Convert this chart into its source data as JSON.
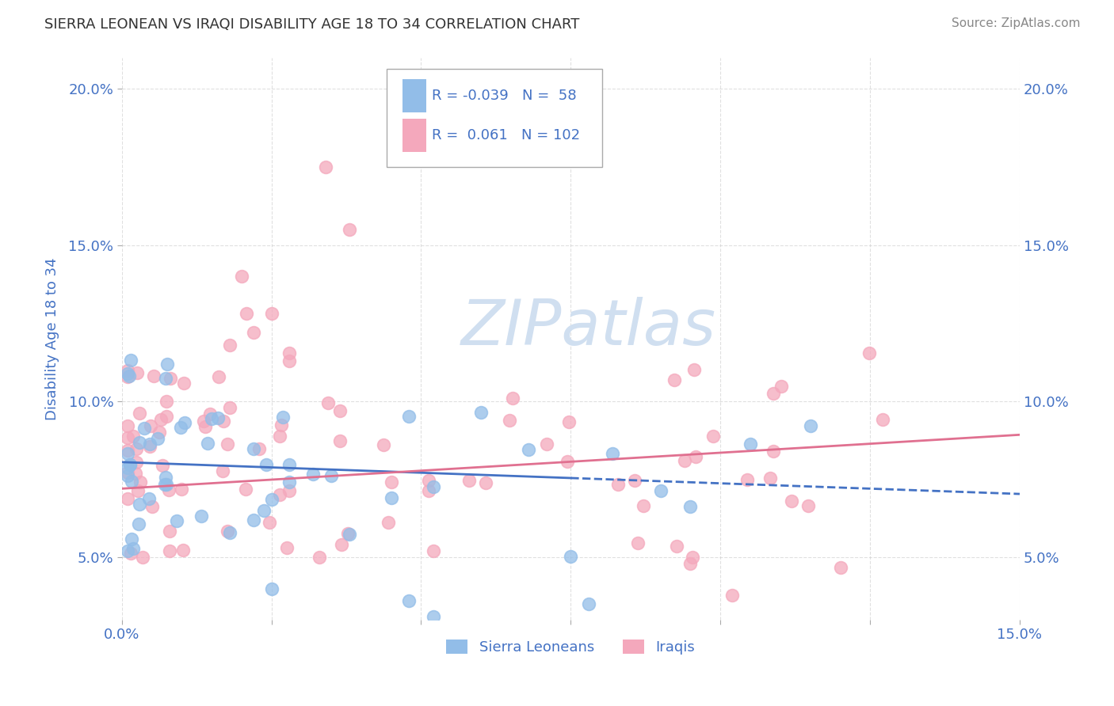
{
  "title": "SIERRA LEONEAN VS IRAQI DISABILITY AGE 18 TO 34 CORRELATION CHART",
  "source_text": "Source: ZipAtlas.com",
  "ylabel": "Disability Age 18 to 34",
  "xlim": [
    0.0,
    0.15
  ],
  "ylim": [
    0.03,
    0.21
  ],
  "xtick_vals": [
    0.0,
    0.025,
    0.05,
    0.075,
    0.1,
    0.125,
    0.15
  ],
  "xticklabels": [
    "0.0%",
    "",
    "",
    "",
    "",
    "",
    "15.0%"
  ],
  "ytick_vals": [
    0.05,
    0.1,
    0.15,
    0.2
  ],
  "yticklabels": [
    "5.0%",
    "10.0%",
    "15.0%",
    "20.0%"
  ],
  "legend_r1": "-0.039",
  "legend_n1": "58",
  "legend_r2": "0.061",
  "legend_n2": "102",
  "color_blue": "#92BDE8",
  "color_pink": "#F4A8BC",
  "color_text_blue": "#4472C4",
  "color_grid": "#CCCCCC",
  "watermark_color": "#D0DFF0",
  "trend_blue_intercept": 0.0805,
  "trend_blue_slope": -0.068,
  "trend_pink_intercept": 0.072,
  "trend_pink_slope": 0.115,
  "trend_blue_solid_end": 0.075,
  "scatter_alpha": 0.75,
  "scatter_size": 130
}
